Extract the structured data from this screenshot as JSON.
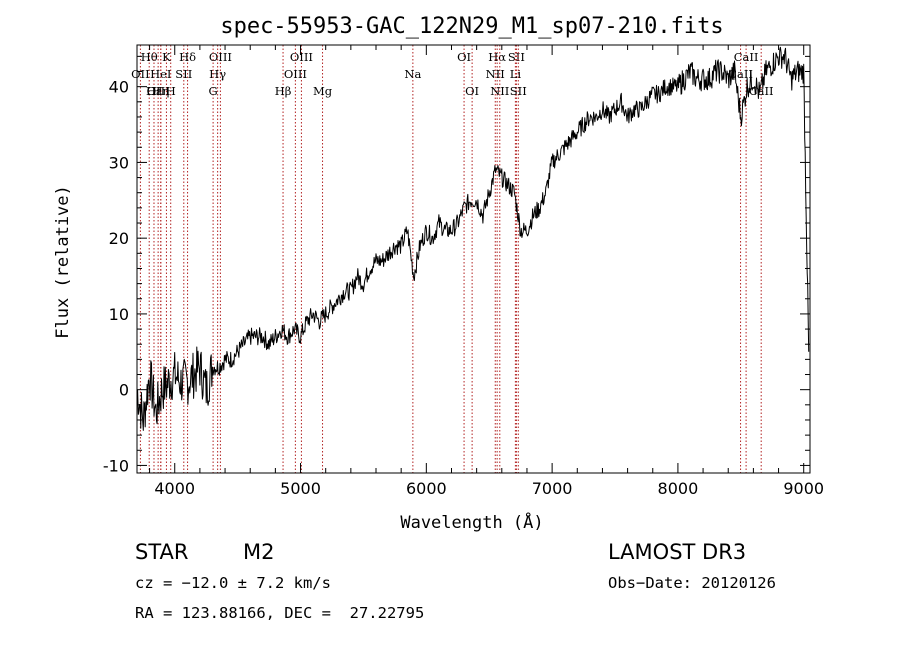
{
  "chart_data": {
    "type": "line",
    "title": "spec-55953-GAC_122N29_M1_sp07-210.fits",
    "xlabel": "Wavelength (Å)",
    "ylabel": "Flux (relative)",
    "xlim": [
      3700,
      9050
    ],
    "ylim": [
      -11,
      45.5
    ],
    "xticks": [
      4000,
      5000,
      6000,
      7000,
      8000,
      9000
    ],
    "yticks": [
      -10,
      0,
      10,
      20,
      30,
      40
    ],
    "series": [
      {
        "name": "spectrum",
        "x": [
          3700,
          3750,
          3800,
          3850,
          3900,
          3950,
          4000,
          4050,
          4100,
          4150,
          4200,
          4250,
          4300,
          4350,
          4400,
          4450,
          4500,
          4550,
          4600,
          4650,
          4700,
          4750,
          4800,
          4850,
          4900,
          4950,
          5000,
          5050,
          5100,
          5150,
          5200,
          5250,
          5300,
          5350,
          5400,
          5450,
          5500,
          5550,
          5600,
          5650,
          5700,
          5750,
          5800,
          5850,
          5900,
          5950,
          6000,
          6050,
          6100,
          6150,
          6200,
          6250,
          6300,
          6350,
          6400,
          6450,
          6500,
          6550,
          6600,
          6650,
          6700,
          6750,
          6800,
          6850,
          6900,
          6950,
          7000,
          7050,
          7100,
          7150,
          7200,
          7250,
          7300,
          7350,
          7400,
          7450,
          7500,
          7550,
          7600,
          7650,
          7700,
          7750,
          7800,
          7850,
          7900,
          7950,
          8000,
          8050,
          8100,
          8150,
          8200,
          8250,
          8300,
          8350,
          8400,
          8450,
          8500,
          8550,
          8600,
          8650,
          8700,
          8750,
          8800,
          8850,
          8900,
          8950,
          9000,
          9040
        ],
        "y": [
          0,
          -4,
          2,
          -3,
          0,
          1,
          2,
          1,
          1,
          2,
          3,
          0,
          3,
          3,
          4,
          4,
          5,
          6,
          7,
          7,
          7,
          6,
          7,
          8,
          7,
          8,
          7,
          9,
          10,
          9,
          10,
          11,
          12,
          13,
          13,
          15,
          14,
          16,
          17,
          17,
          18,
          19,
          19,
          21,
          15,
          19,
          21,
          20,
          22,
          21,
          21,
          22,
          24,
          25,
          25,
          23,
          26,
          29,
          28,
          27,
          26,
          21,
          21,
          23,
          24,
          26,
          30,
          31,
          32,
          33,
          34,
          35,
          36,
          36,
          37,
          36,
          37,
          38,
          36,
          37,
          37,
          38,
          39,
          39,
          40,
          40,
          40,
          41,
          42,
          41,
          41,
          41,
          42,
          42,
          41,
          42,
          36,
          40,
          41,
          39,
          42,
          43,
          44,
          44,
          41,
          42,
          42,
          5
        ]
      }
    ],
    "emission_lines": [
      {
        "name": "Hθ",
        "x": 3797,
        "row": 1
      },
      {
        "name": "OII",
        "x": 3727,
        "row": 2
      },
      {
        "name": "Hε",
        "x": 3835,
        "row": 3
      },
      {
        "name": "OIII",
        "x": 3868,
        "row": 3
      },
      {
        "name": "K",
        "x": 3934,
        "row": 1
      },
      {
        "name": "HeI",
        "x": 3889,
        "row": 2
      },
      {
        "name": "SII",
        "x": 4072,
        "row": 2
      },
      {
        "name": "Hη",
        "x": 3889,
        "row": 3
      },
      {
        "name": "H",
        "x": 3968,
        "row": 3
      },
      {
        "name": "Hδ",
        "x": 4102,
        "row": 1
      },
      {
        "name": "OIII",
        "x": 4363,
        "row": 1
      },
      {
        "name": "Hγ",
        "x": 4341,
        "row": 2
      },
      {
        "name": "G",
        "x": 4305,
        "row": 3
      },
      {
        "name": "OIII",
        "x": 5007,
        "row": 1
      },
      {
        "name": "OIII",
        "x": 4959,
        "row": 2
      },
      {
        "name": "Hβ",
        "x": 4861,
        "row": 3
      },
      {
        "name": "Mg",
        "x": 5175,
        "row": 3
      },
      {
        "name": "Na",
        "x": 5893,
        "row": 2
      },
      {
        "name": "OI",
        "x": 6300,
        "row": 1
      },
      {
        "name": "OI",
        "x": 6364,
        "row": 3
      },
      {
        "name": "Hα",
        "x": 6563,
        "row": 1
      },
      {
        "name": "SII",
        "x": 6716,
        "row": 1
      },
      {
        "name": "NII",
        "x": 6548,
        "row": 2
      },
      {
        "name": "Li",
        "x": 6708,
        "row": 2
      },
      {
        "name": "NII",
        "x": 6584,
        "row": 3
      },
      {
        "name": "SII",
        "x": 6731,
        "row": 3
      },
      {
        "name": "CaII",
        "x": 8542,
        "row": 1
      },
      {
        "name": "CaII",
        "x": 8498,
        "row": 2
      },
      {
        "name": "CaII",
        "x": 8662,
        "row": 3
      }
    ]
  },
  "info": {
    "class": "STAR",
    "subclass": "M2",
    "survey": "LAMOST DR3",
    "cz": "cz = −12.0 ± 7.2 km/s",
    "obs_date": "Obs−Date: 20120126",
    "coords": "RA = 123.88166, DEC =  27.22795"
  },
  "colors": {
    "line_marker": "#b22222",
    "spectrum": "#000000",
    "axes": "#000000"
  }
}
